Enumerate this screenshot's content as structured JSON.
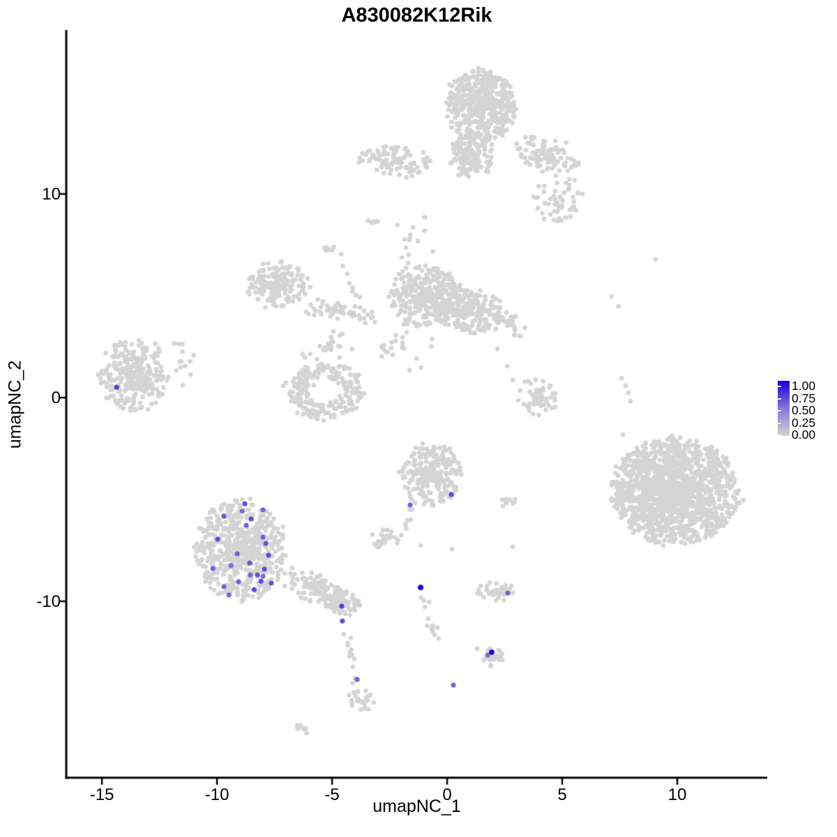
{
  "chart_data": {
    "type": "scatter",
    "title": "A830082K12Rik",
    "xlabel": "umapNC_1",
    "ylabel": "umapNC_2",
    "xlim": [
      -16.55,
      13.91
    ],
    "ylim": [
      -18.66,
      17.98
    ],
    "x_ticks": [
      -15,
      -10,
      -5,
      0,
      5,
      10
    ],
    "y_ticks": [
      10,
      0,
      -10
    ],
    "grid": false,
    "seed": 42,
    "point_radius_px": 3.3,
    "base_point_color": "#d4d4d4",
    "axis_color": "#000000",
    "legend": {
      "position": "right",
      "labels": [
        "1.00",
        "0.75",
        "0.50",
        "0.25",
        "0.00"
      ],
      "low_color": "#d3d3d3",
      "mid_color": "#8a75d8",
      "high_color": "#1400e0"
    },
    "clusters": [
      {
        "name": "top-main",
        "cx": 1.48,
        "cy": 14.32,
        "rx": 1.52,
        "ry": 1.75,
        "n": 480,
        "rot": 0,
        "edge": 0.7
      },
      {
        "name": "top-funnel",
        "cx": 1.03,
        "cy": 11.82,
        "rx": 0.92,
        "ry": 1.1,
        "n": 140,
        "rot": 0,
        "edge": 0.75
      },
      {
        "name": "top-left-arm",
        "cx": -2.3,
        "cy": 11.64,
        "rx": 1.55,
        "ry": 0.8,
        "n": 95,
        "rot": -8,
        "edge": 0.8
      },
      {
        "name": "top-right-wing",
        "cx": 4.36,
        "cy": 11.92,
        "rx": 1.45,
        "ry": 0.85,
        "n": 100,
        "rot": -25,
        "edge": 0.8
      },
      {
        "name": "top-right-scatter",
        "cx": 4.82,
        "cy": 9.69,
        "rx": 1.15,
        "ry": 1.15,
        "n": 55,
        "rot": 0,
        "edge": 1.0
      },
      {
        "name": "streak-a",
        "cx": -3.15,
        "cy": 8.66,
        "rx": 0.34,
        "ry": 0.22,
        "n": 8,
        "rot": -35,
        "edge": 1.0
      },
      {
        "name": "streak-b",
        "cx": -5.06,
        "cy": 7.33,
        "rx": 0.36,
        "ry": 0.16,
        "n": 7,
        "rot": -20,
        "edge": 1.0
      },
      {
        "name": "below-top-scatter",
        "cx": -1.55,
        "cy": 7.88,
        "rx": 1.0,
        "ry": 1.6,
        "n": 16,
        "rot": 0,
        "edge": 1.0
      },
      {
        "name": "mid-left",
        "cx": -7.36,
        "cy": 5.55,
        "rx": 1.3,
        "ry": 1.15,
        "n": 170,
        "rot": 0,
        "edge": 0.75
      },
      {
        "name": "mid-left-tail",
        "cx": -4.67,
        "cy": 4.21,
        "rx": 1.7,
        "ry": 0.45,
        "n": 55,
        "rot": -10,
        "edge": 0.9
      },
      {
        "name": "central-main",
        "cx": -0.94,
        "cy": 4.97,
        "rx": 1.5,
        "ry": 1.55,
        "n": 300,
        "rot": 0,
        "edge": 0.7
      },
      {
        "name": "central-right",
        "cx": 0.94,
        "cy": 4.28,
        "rx": 1.65,
        "ry": 1.15,
        "n": 220,
        "rot": -10,
        "edge": 0.7
      },
      {
        "name": "central-bridge",
        "cx": 2.79,
        "cy": 3.66,
        "rx": 0.8,
        "ry": 0.75,
        "n": 22,
        "rot": 0,
        "edge": 1.0
      },
      {
        "name": "central-below",
        "cx": -2.0,
        "cy": 2.5,
        "rx": 1.5,
        "ry": 1.5,
        "n": 26,
        "rot": 0,
        "edge": 1.0
      },
      {
        "name": "c-ring",
        "cx": -5.33,
        "cy": 0.34,
        "rx": 1.75,
        "ry": 1.4,
        "n": 220,
        "rot": 0,
        "edge": 0.85,
        "hole": 0.45
      },
      {
        "name": "c-ring-satellites",
        "cx": -5.18,
        "cy": 2.5,
        "rx": 1.35,
        "ry": 0.9,
        "n": 26,
        "rot": 0,
        "edge": 1.0
      },
      {
        "name": "far-left",
        "cx": -13.61,
        "cy": 1.1,
        "rx": 1.55,
        "ry": 1.8,
        "n": 280,
        "rot": 0,
        "edge": 0.75
      },
      {
        "name": "far-left-satellites",
        "cx": -11.67,
        "cy": 1.61,
        "rx": 0.75,
        "ry": 1.6,
        "n": 13,
        "rot": 0,
        "edge": 1.0
      },
      {
        "name": "right-big",
        "cx": 9.91,
        "cy": -4.59,
        "rx": 2.8,
        "ry": 2.65,
        "n": 1500,
        "rot": 0,
        "edge": 0.8
      },
      {
        "name": "mid-right-small",
        "cx": 3.91,
        "cy": 0.0,
        "rx": 0.95,
        "ry": 0.9,
        "n": 55,
        "rot": 0,
        "edge": 0.8
      },
      {
        "name": "small-pair",
        "cx": 2.52,
        "cy": -5.07,
        "rx": 0.55,
        "ry": 0.28,
        "n": 9,
        "rot": 0,
        "edge": 1.0
      },
      {
        "name": "central-lower",
        "cx": -0.67,
        "cy": -3.77,
        "rx": 1.3,
        "ry": 1.55,
        "n": 240,
        "rot": 0,
        "edge": 0.75
      },
      {
        "name": "small-left-lower",
        "cx": -2.64,
        "cy": -6.92,
        "rx": 0.75,
        "ry": 0.5,
        "n": 26,
        "rot": 0,
        "edge": 0.9
      },
      {
        "name": "lower-left-big",
        "cx": -8.97,
        "cy": -7.47,
        "rx": 2.0,
        "ry": 2.5,
        "n": 560,
        "rot": 0,
        "edge": 0.75
      },
      {
        "name": "lower-left-tail",
        "cx": -5.73,
        "cy": -9.35,
        "rx": 1.55,
        "ry": 0.7,
        "n": 100,
        "rot": -28,
        "edge": 0.8
      },
      {
        "name": "tail-end-blob",
        "cx": -4.67,
        "cy": -10.03,
        "rx": 0.95,
        "ry": 0.6,
        "n": 70,
        "rot": -20,
        "edge": 0.8
      },
      {
        "name": "small-right-lower",
        "cx": 2.09,
        "cy": -9.52,
        "rx": 0.9,
        "ry": 0.5,
        "n": 42,
        "rot": 0,
        "edge": 0.8
      },
      {
        "name": "tiny-blob-bottom",
        "cx": 1.97,
        "cy": -12.71,
        "rx": 0.5,
        "ry": 0.55,
        "n": 24,
        "rot": 0,
        "edge": 0.85
      },
      {
        "name": "bottom-blob",
        "cx": -3.76,
        "cy": -14.9,
        "rx": 0.5,
        "ry": 0.6,
        "n": 24,
        "rot": 15,
        "edge": 0.85
      },
      {
        "name": "bottom-streak",
        "cx": -6.21,
        "cy": -16.27,
        "rx": 0.33,
        "ry": 0.15,
        "n": 7,
        "rot": -35,
        "edge": 1.0
      }
    ],
    "trails": [
      {
        "name": "diagonal-upper",
        "pts": [
          [
            -4.79,
            7.09
          ],
          [
            -3.82,
            4.97
          ]
        ],
        "n": 8,
        "jitter": 0.12
      },
      {
        "name": "center-drop",
        "pts": [
          [
            -1.09,
            -9.59
          ],
          [
            -0.94,
            -10.34
          ],
          [
            -0.7,
            -11.13
          ],
          [
            -0.39,
            -11.71
          ],
          [
            -0.27,
            -12.09
          ]
        ],
        "n": 13,
        "jitter": 0.1
      },
      {
        "name": "bottom-drop",
        "pts": [
          [
            -4.45,
            -11.13
          ],
          [
            -4.27,
            -12.16
          ],
          [
            -4.12,
            -13.01
          ],
          [
            -3.94,
            -13.84
          ],
          [
            -3.85,
            -14.32
          ]
        ],
        "n": 12,
        "jitter": 0.08
      },
      {
        "name": "central-lower-tail",
        "pts": [
          [
            -1.48,
            -4.79
          ],
          [
            -1.64,
            -5.62
          ],
          [
            -1.73,
            -6.2
          ],
          [
            -1.76,
            -6.47
          ]
        ],
        "n": 9,
        "jitter": 0.07
      }
    ],
    "singles": [
      [
        9.06,
        6.78
      ],
      [
        7.15,
        4.97
      ],
      [
        7.45,
        4.49
      ],
      [
        7.58,
        0.96
      ],
      [
        7.76,
        0.58
      ],
      [
        7.88,
        0.24
      ],
      [
        7.97,
        -0.17
      ],
      [
        7.64,
        -1.82
      ],
      [
        2.18,
        2.4
      ],
      [
        2.61,
        1.54
      ],
      [
        2.85,
        0.86
      ],
      [
        -1.15,
        -7.26
      ],
      [
        0.21,
        -7.43
      ],
      [
        2.85,
        -7.33
      ],
      [
        1.3,
        -12.33
      ]
    ],
    "expressing_cells": [
      [
        -8.79,
        -5.21,
        0.7
      ],
      [
        -8.0,
        -5.51,
        0.6
      ],
      [
        -9.7,
        -5.82,
        0.65
      ],
      [
        -8.52,
        -5.96,
        0.7
      ],
      [
        -8.91,
        -5.58,
        0.55
      ],
      [
        -8.73,
        -6.27,
        0.6
      ],
      [
        -9.97,
        -6.95,
        0.7
      ],
      [
        -8.0,
        -6.85,
        0.6
      ],
      [
        -7.88,
        -7.16,
        0.65
      ],
      [
        -9.12,
        -7.67,
        0.6
      ],
      [
        -7.76,
        -7.74,
        0.7
      ],
      [
        -9.39,
        -8.25,
        0.55
      ],
      [
        -10.18,
        -8.39,
        0.6
      ],
      [
        -8.58,
        -8.12,
        0.65
      ],
      [
        -7.94,
        -8.42,
        0.7
      ],
      [
        -8.55,
        -8.7,
        0.6
      ],
      [
        -8.24,
        -8.7,
        0.65
      ],
      [
        -8.0,
        -8.77,
        0.55
      ],
      [
        -8.09,
        -9.01,
        0.7
      ],
      [
        -9.06,
        -9.04,
        0.6
      ],
      [
        -7.64,
        -9.11,
        0.65
      ],
      [
        -9.7,
        -9.28,
        0.6
      ],
      [
        -8.39,
        -9.42,
        0.7
      ],
      [
        -9.48,
        -9.69,
        0.6
      ],
      [
        -4.58,
        -10.24,
        0.75
      ],
      [
        -4.55,
        -10.96,
        0.7
      ],
      [
        -14.36,
        0.51,
        0.75
      ],
      [
        0.18,
        -4.76,
        0.7
      ],
      [
        -1.61,
        -5.27,
        0.6
      ],
      [
        -1.15,
        -9.32,
        1.0
      ],
      [
        2.64,
        -9.59,
        0.6
      ],
      [
        1.94,
        -12.5,
        1.0
      ],
      [
        1.76,
        -12.64,
        0.55
      ],
      [
        0.27,
        -14.11,
        0.6
      ],
      [
        -3.91,
        -13.84,
        0.6
      ]
    ]
  }
}
